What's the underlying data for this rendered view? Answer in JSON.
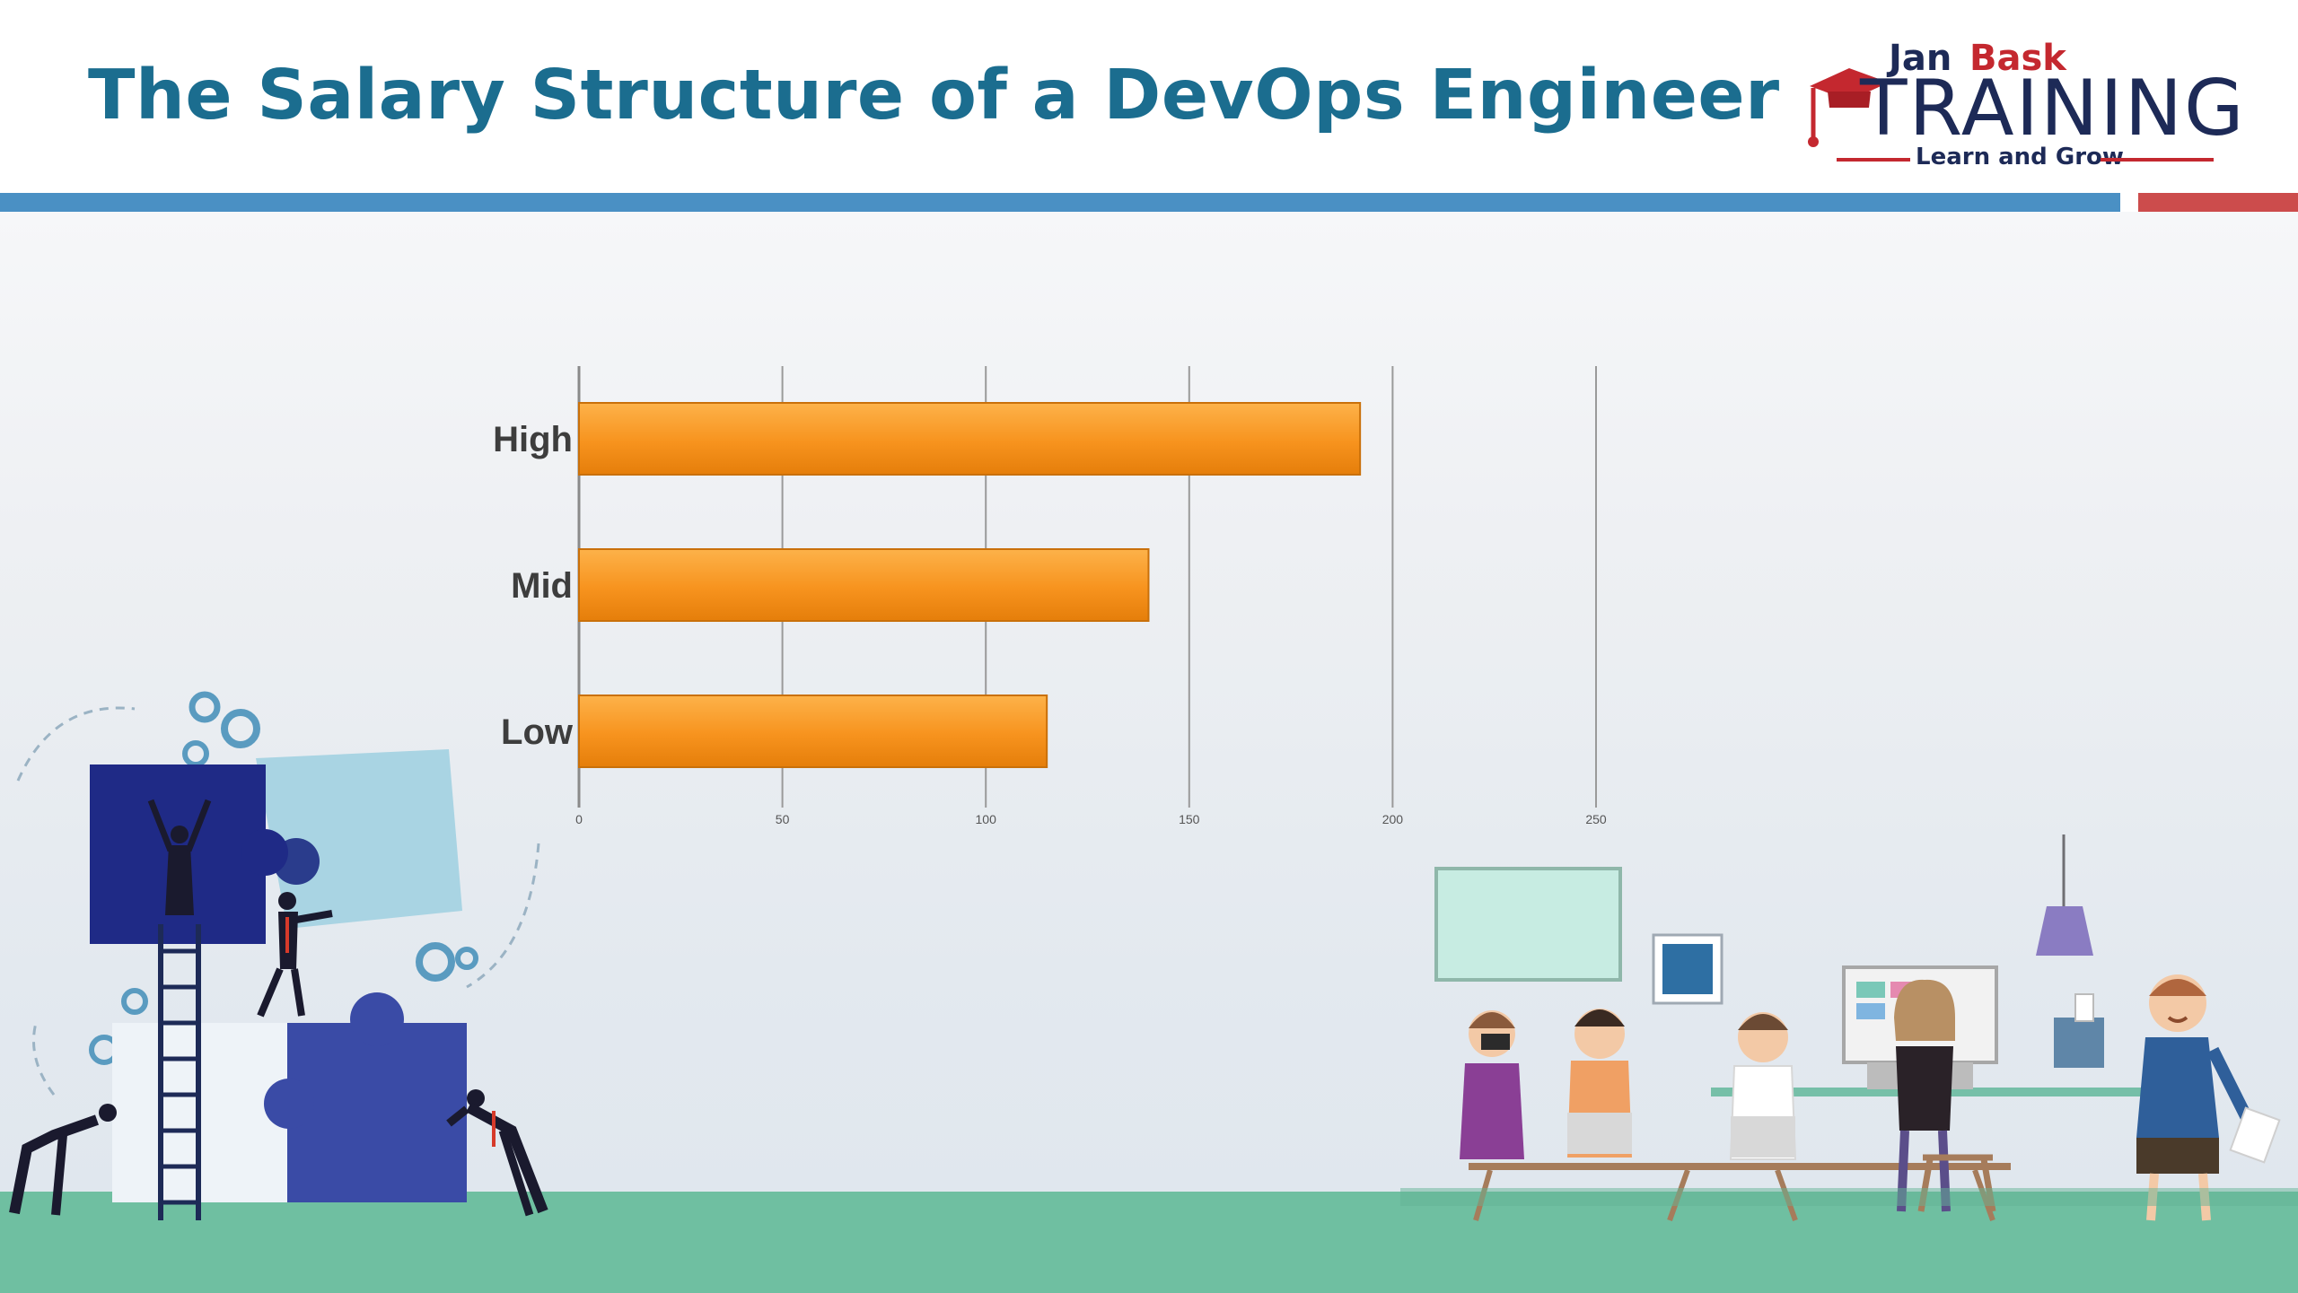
{
  "slide": {
    "title": "The Salary Structure of a DevOps Engineer"
  },
  "logo": {
    "brand_part1": "Jan",
    "brand_part2": "Bask",
    "wordmark": "TRAINING",
    "tagline": "Learn and Grow",
    "icon": "graduation-cap-icon"
  },
  "colors": {
    "title": "#1b6d8f",
    "accent_blue": "#4a90c4",
    "accent_red": "#cc4c4c",
    "bar_fill": "#f7931e",
    "ground": "#6fbfa1"
  },
  "chart_data": {
    "type": "bar",
    "orientation": "horizontal",
    "categories": [
      "High",
      "Mid",
      "Low"
    ],
    "values": [
      192,
      140,
      115
    ],
    "xlim": [
      0,
      250
    ],
    "xticks": [
      "0",
      "50",
      "100",
      "150",
      "200",
      "250"
    ],
    "grid": true,
    "legend": "none"
  }
}
